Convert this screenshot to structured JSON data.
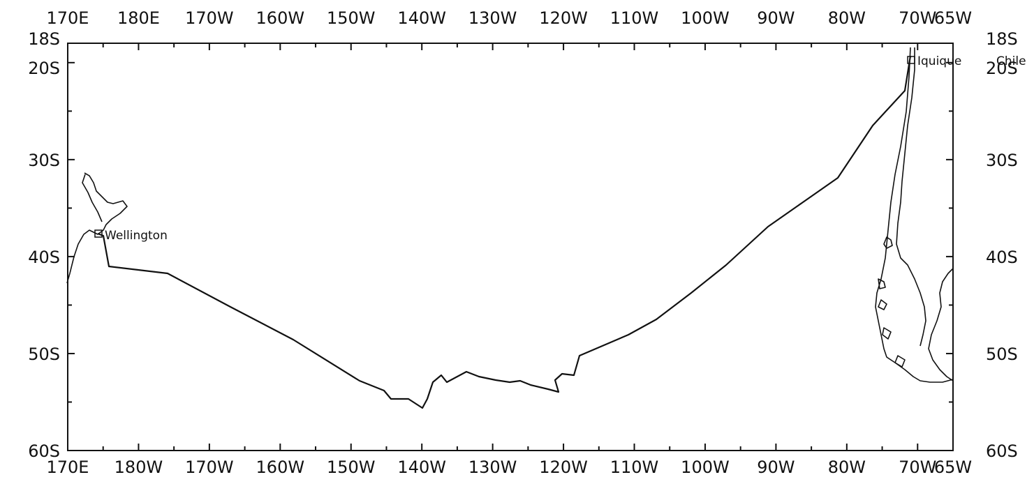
{
  "map": {
    "top_lon_labels": [
      "170E",
      "180E",
      "170W",
      "160W",
      "150W",
      "140W",
      "130W",
      "120W",
      "110W",
      "100W",
      "90W",
      "80W",
      "70W",
      "65W"
    ],
    "bottom_lon_labels": [
      "170E",
      "180W",
      "170W",
      "160W",
      "150W",
      "140W",
      "130W",
      "120W",
      "110W",
      "100W",
      "90W",
      "80W",
      "70W",
      "65W"
    ],
    "left_lat_labels": [
      "18S",
      "20S",
      "30S",
      "40S",
      "50S",
      "60S"
    ],
    "right_lat_labels": [
      "18S",
      "20S",
      "30S",
      "40S",
      "50S",
      "60S"
    ],
    "places": [
      {
        "name": "Wellington"
      },
      {
        "name": "Iquique"
      },
      {
        "name": "Chile"
      }
    ],
    "track_label": "",
    "extent": {
      "lon_min": 170,
      "lon_max": 295,
      "lat_min": -60,
      "lat_max": -18
    }
  }
}
